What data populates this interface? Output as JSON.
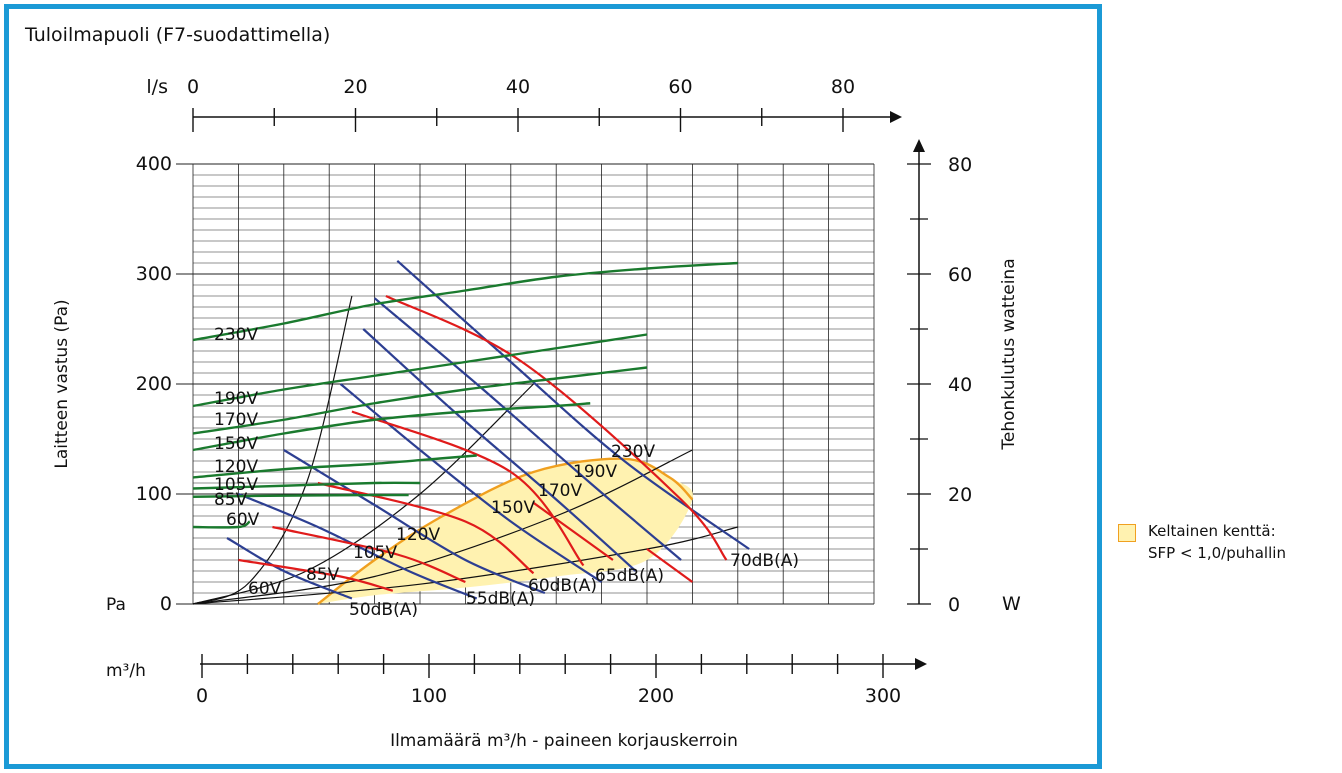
{
  "title": "Tuloilmapuoli (F7-suodattimella)",
  "legend": {
    "line1": "Keltainen kenttä:",
    "line2": "SFP < 1,0/puhallin",
    "fill": "#fff2b0",
    "border": "#f0a020"
  },
  "colors": {
    "frame": "#1b9ad6",
    "power": "#1a7a2e",
    "noise": "#e01b1b",
    "flow": "#2d3f92",
    "system": "#111111",
    "sfp_area": "#fff2b0",
    "sfp_border": "#f0a020"
  },
  "chart_data": {
    "type": "line",
    "axes": {
      "x_m3h": {
        "label": "m³/h",
        "ticks": [
          0,
          100,
          200,
          300
        ],
        "range": [
          0,
          300
        ]
      },
      "x_ls": {
        "label": "l/s",
        "ticks": [
          0,
          20,
          40,
          60,
          80
        ],
        "range": [
          0,
          83
        ]
      },
      "y_pa": {
        "label": "Laitteen vastus (Pa)",
        "unit": "Pa",
        "ticks": [
          0,
          100,
          200,
          300,
          400
        ],
        "range": [
          0,
          400
        ]
      },
      "y_w": {
        "label": "Tehonkulutus watteina",
        "unit": "W",
        "ticks": [
          0,
          20,
          40,
          60,
          80
        ],
        "range": [
          0,
          80
        ]
      },
      "xlabel": "Ilmamäärä m³/h - paineen korjauskerroin",
      "ylabel": "Laitteen vastus (Pa)"
    },
    "grid": true,
    "power_curves": [
      {
        "name": "230V",
        "x": [
          0,
          40,
          80,
          120,
          160,
          200,
          240
        ],
        "y": [
          48,
          51,
          54.5,
          57,
          59.5,
          61,
          62
        ]
      },
      {
        "name": "190V",
        "x": [
          0,
          40,
          80,
          120,
          160,
          200
        ],
        "y": [
          36,
          39,
          41.5,
          44,
          46.5,
          49
        ]
      },
      {
        "name": "170V",
        "x": [
          0,
          40,
          80,
          120,
          160,
          200
        ],
        "y": [
          31,
          33.5,
          36.5,
          39,
          41,
          43
        ]
      },
      {
        "name": "150V",
        "x": [
          0,
          40,
          80,
          120,
          160,
          175
        ],
        "y": [
          28,
          31,
          33.5,
          35,
          36,
          36.5
        ]
      },
      {
        "name": "120V",
        "x": [
          0,
          40,
          80,
          110,
          125
        ],
        "y": [
          23,
          24.5,
          25.5,
          26.5,
          27
        ]
      },
      {
        "name": "105V",
        "x": [
          0,
          40,
          80,
          100
        ],
        "y": [
          21,
          21.5,
          22,
          22
        ]
      },
      {
        "name": "85V",
        "x": [
          0,
          40,
          80,
          95
        ],
        "y": [
          19.5,
          19.7,
          19.8,
          19.8
        ]
      },
      {
        "name": "60V",
        "x": [
          0,
          20,
          25
        ],
        "y": [
          14,
          14,
          15
        ]
      }
    ],
    "system_curves": [
      {
        "x": [
          0,
          25,
          50,
          70
        ],
        "y": [
          0,
          20,
          110,
          280
        ]
      },
      {
        "x": [
          0,
          50,
          100,
          150
        ],
        "y": [
          0,
          30,
          100,
          200
        ]
      },
      {
        "x": [
          0,
          80,
          160,
          220
        ],
        "y": [
          0,
          25,
          80,
          140
        ]
      },
      {
        "x": [
          0,
          100,
          200,
          240
        ],
        "y": [
          0,
          18,
          50,
          70
        ]
      }
    ],
    "fan_curves": [
      {
        "x": [
          90,
          140,
          190,
          245
        ],
        "y": [
          312,
          220,
          130,
          50
        ]
      },
      {
        "x": [
          80,
          125,
          175,
          215
        ],
        "y": [
          278,
          200,
          110,
          40
        ]
      },
      {
        "x": [
          75,
          115,
          160,
          195
        ],
        "y": [
          250,
          175,
          95,
          30
        ]
      },
      {
        "x": [
          65,
          100,
          140,
          180
        ],
        "y": [
          200,
          140,
          75,
          20
        ]
      },
      {
        "x": [
          40,
          80,
          120,
          155
        ],
        "y": [
          140,
          90,
          40,
          10
        ]
      },
      {
        "x": [
          20,
          55,
          95,
          125
        ],
        "y": [
          100,
          70,
          30,
          5
        ]
      },
      {
        "x": [
          15,
          40,
          70
        ],
        "y": [
          60,
          30,
          5
        ]
      }
    ],
    "noise_curves": [
      {
        "name": "50dB(A)",
        "x": [
          20,
          65,
          88
        ],
        "y": [
          40,
          25,
          12
        ]
      },
      {
        "name": "55dB(A)",
        "x": [
          35,
          90,
          120
        ],
        "y": [
          70,
          45,
          20
        ]
      },
      {
        "name": "60dB(A)",
        "x": [
          55,
          120,
          150
        ],
        "y": [
          110,
          75,
          28
        ]
      },
      {
        "name": "65dB(A)",
        "x": [
          70,
          140,
          172
        ],
        "y": [
          175,
          120,
          35
        ]
      },
      {
        "name": "70dB(A)",
        "x": [
          85,
          145,
          215,
          235
        ],
        "y": [
          280,
          220,
          95,
          40
        ]
      },
      {
        "name": "",
        "x": [
          150,
          185
        ],
        "y": [
          92,
          40
        ]
      },
      {
        "name": "",
        "x": [
          200,
          220
        ],
        "y": [
          50,
          20
        ]
      }
    ],
    "sfp_area": {
      "x": [
        55,
        80,
        110,
        150,
        190,
        210,
        220,
        200,
        160,
        120,
        80,
        55
      ],
      "y": [
        0,
        40,
        80,
        120,
        132,
        115,
        95,
        40,
        25,
        15,
        8,
        0
      ]
    },
    "labels": {
      "voltage_left": [
        "230V",
        "190V",
        "170V",
        "150V",
        "120V",
        "105V",
        "85V",
        "60V"
      ],
      "voltage_area": [
        "230V",
        "190V",
        "170V",
        "150V",
        "120V",
        "105V",
        "85V",
        "60V"
      ],
      "noise": [
        "50dB(A)",
        "55dB(A)",
        "60dB(A)",
        "65dB(A)",
        "70dB(A)"
      ],
      "pa": "Pa",
      "w": "W"
    }
  }
}
